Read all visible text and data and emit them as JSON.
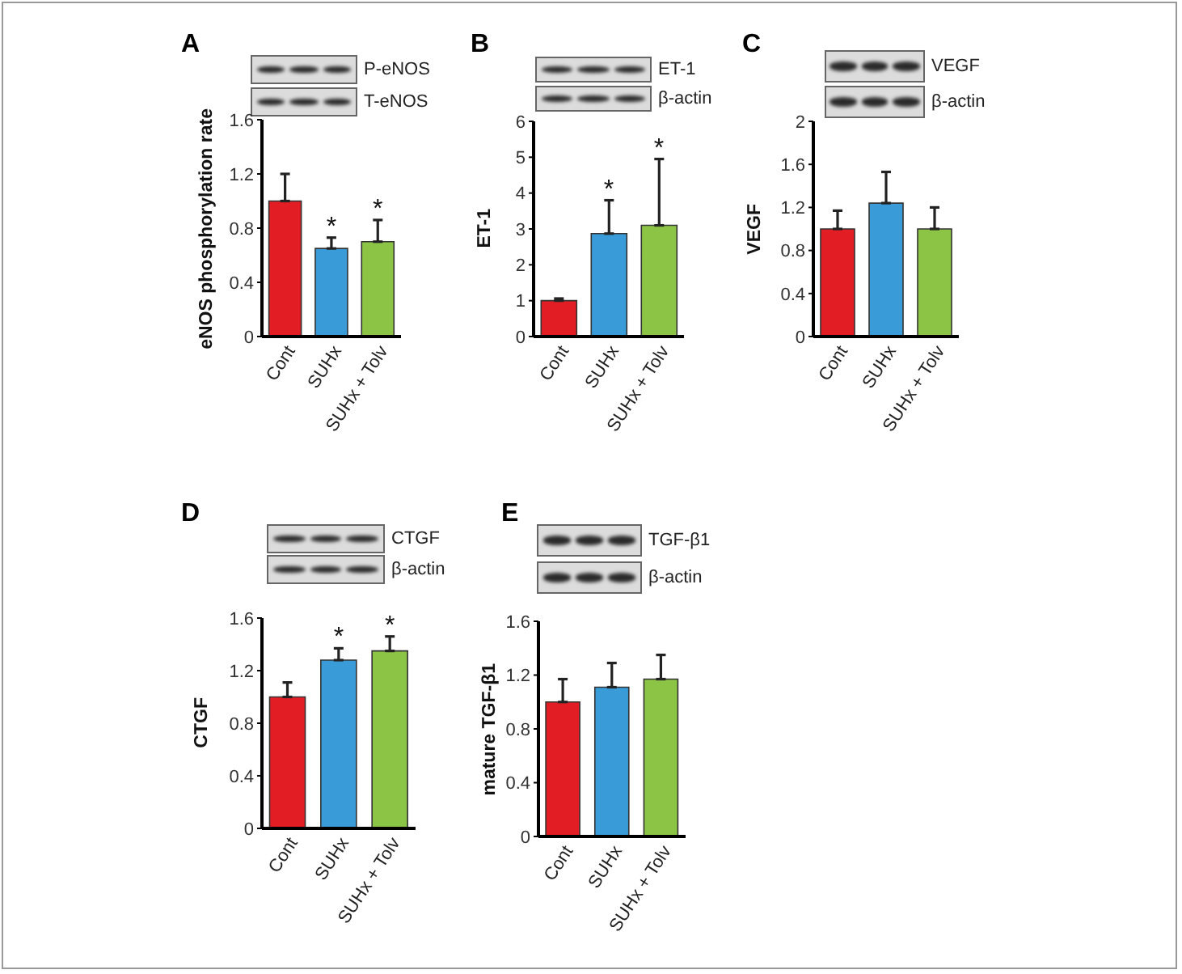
{
  "chart_data": [
    {
      "type": "bar",
      "title": "A",
      "ylabel": "eNOS phosphorylation rate",
      "categories": [
        "Cont",
        "SUHx",
        "SUHx + Tolv"
      ],
      "values": [
        1,
        0.65,
        0.7
      ],
      "colors": [
        "#e21e24",
        "#399bd7",
        "#8cc446"
      ],
      "errors": [
        [
          1,
          1.2
        ],
        [
          0.65,
          0.73
        ],
        [
          0.7,
          0.86
        ]
      ],
      "ylim": [
        0,
        1.6
      ],
      "yticks": [
        0,
        0.4,
        0.8,
        1.2,
        1.6
      ],
      "annotations": [
        "P-eNOS",
        "T-eNOS",
        {
          "text": "*",
          "x": "SUHx",
          "y": 0.73
        },
        {
          "text": "*",
          "x": "SUHx + Tolv",
          "y": 0.86
        }
      ]
    },
    {
      "type": "bar",
      "title": "B",
      "ylabel": "ET-1",
      "categories": [
        "Cont",
        "SUHx",
        "SUHx + Tolv"
      ],
      "values": [
        1,
        2.87,
        3.1
      ],
      "colors": [
        "#e21e24",
        "#399bd7",
        "#8cc446"
      ],
      "errors": [
        [
          1,
          1.06
        ],
        [
          2.87,
          3.8
        ],
        [
          3.1,
          4.95
        ]
      ],
      "ylim": [
        0,
        6
      ],
      "yticks": [
        0,
        1,
        2,
        3,
        4,
        5,
        6
      ],
      "annotations": [
        "ET-1",
        "β-actin",
        {
          "text": "*",
          "x": "SUHx",
          "y": 3.8
        },
        {
          "text": "*",
          "x": "SUHx + Tolv",
          "y": 4.95
        }
      ]
    },
    {
      "type": "bar",
      "title": "C",
      "ylabel": "VEGF",
      "categories": [
        "Cont",
        "SUHx",
        "SUHx + Tolv"
      ],
      "values": [
        1,
        1.24,
        1
      ],
      "colors": [
        "#e21e24",
        "#399bd7",
        "#8cc446"
      ],
      "errors": [
        [
          1,
          1.17
        ],
        [
          1.24,
          1.53
        ],
        [
          1,
          1.2
        ]
      ],
      "ylim": [
        0,
        2
      ],
      "yticks": [
        0,
        0.4,
        0.8,
        1.2,
        1.6,
        2
      ],
      "annotations": [
        "VEGF",
        "β-actin"
      ]
    },
    {
      "type": "bar",
      "title": "D",
      "ylabel": "CTGF",
      "categories": [
        "Cont",
        "SUHx",
        "SUHx + Tolv"
      ],
      "values": [
        1,
        1.28,
        1.35
      ],
      "colors": [
        "#e21e24",
        "#399bd7",
        "#8cc446"
      ],
      "errors": [
        [
          1,
          1.11
        ],
        [
          1.28,
          1.37
        ],
        [
          1.35,
          1.46
        ]
      ],
      "ylim": [
        0,
        1.6
      ],
      "yticks": [
        0,
        0.4,
        0.8,
        1.2,
        1.6
      ],
      "annotations": [
        "CTGF",
        "β-actin",
        {
          "text": "*",
          "x": "SUHx",
          "y": 1.37
        },
        {
          "text": "*",
          "x": "SUHx + Tolv",
          "y": 1.46
        }
      ]
    },
    {
      "type": "bar",
      "title": "E",
      "ylabel": "mature TGF-β1",
      "categories": [
        "Cont",
        "SUHx",
        "SUHx + Tolv"
      ],
      "values": [
        1,
        1.11,
        1.17
      ],
      "colors": [
        "#e21e24",
        "#399bd7",
        "#8cc446"
      ],
      "errors": [
        [
          1,
          1.17
        ],
        [
          1.11,
          1.29
        ],
        [
          1.17,
          1.35
        ]
      ],
      "ylim": [
        0,
        1.6
      ],
      "yticks": [
        0,
        0.4,
        0.8,
        1.2,
        1.6
      ],
      "annotations": [
        "TGF-β1",
        "β-actin"
      ]
    }
  ]
}
